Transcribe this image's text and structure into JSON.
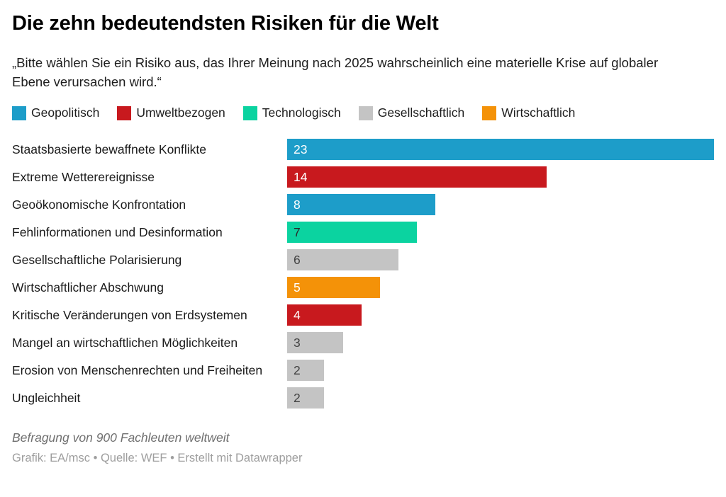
{
  "chart_data": {
    "type": "bar",
    "orientation": "horizontal",
    "title": "Die zehn bedeutendsten Risiken für die Welt",
    "subtitle": "„Bitte wählen Sie ein Risiko aus, das Ihrer Meinung nach 2025 wahrscheinlich eine materielle Krise auf globaler Ebene verursachen wird.“",
    "legend_position": "top",
    "grid": false,
    "value_labels": "inside-left",
    "xlim": [
      0,
      23
    ],
    "legend": [
      {
        "id": "geopolitisch",
        "label": "Geopolitisch",
        "color": "#1d9dc9",
        "value_text_color": "#ffffff"
      },
      {
        "id": "umweltbezogen",
        "label": "Umweltbezogen",
        "color": "#c8191e",
        "value_text_color": "#ffffff"
      },
      {
        "id": "technologisch",
        "label": "Technologisch",
        "color": "#0bd3a0",
        "value_text_color": "#2a2a2a"
      },
      {
        "id": "gesellschaftlich",
        "label": "Gesellschaftlich",
        "color": "#c4c4c4",
        "value_text_color": "#424242"
      },
      {
        "id": "wirtschaftlich",
        "label": "Wirtschaftlich",
        "color": "#f49208",
        "value_text_color": "#ffffff"
      }
    ],
    "items": [
      {
        "label": "Staatsbasierte bewaffnete Konflikte",
        "value": 23,
        "category": "geopolitisch"
      },
      {
        "label": "Extreme Wetterereignisse",
        "value": 14,
        "category": "umweltbezogen"
      },
      {
        "label": "Geoökonomische Konfrontation",
        "value": 8,
        "category": "geopolitisch"
      },
      {
        "label": "Fehlinformationen und Desinformation",
        "value": 7,
        "category": "technologisch"
      },
      {
        "label": "Gesellschaftliche Polarisierung",
        "value": 6,
        "category": "gesellschaftlich"
      },
      {
        "label": "Wirtschaftlicher Abschwung",
        "value": 5,
        "category": "wirtschaftlich"
      },
      {
        "label": "Kritische Veränderungen von Erdsystemen",
        "value": 4,
        "category": "umweltbezogen"
      },
      {
        "label": "Mangel an wirtschaftlichen Möglichkeiten",
        "value": 3,
        "category": "gesellschaftlich"
      },
      {
        "label": "Erosion von Menschenrechten und Freiheiten",
        "value": 2,
        "category": "gesellschaftlich"
      },
      {
        "label": "Ungleichheit",
        "value": 2,
        "category": "gesellschaftlich"
      }
    ],
    "note": "Befragung von 900 Fachleuten weltweit",
    "credits": "Grafik: EA/msc • Quelle: WEF • Erstellt mit Datawrapper"
  }
}
